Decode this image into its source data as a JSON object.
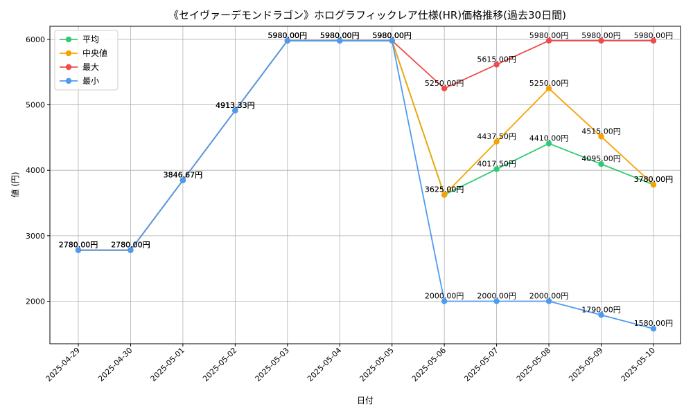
{
  "chart_data": {
    "type": "line",
    "title": "《セイヴァーデモンドラゴン》ホログラフィックレア仕様(HR)価格推移(過去30日間)",
    "xlabel": "日付",
    "ylabel": "値 (円)",
    "categories": [
      "2025-04-29",
      "2025-04-30",
      "2025-05-01",
      "2025-05-02",
      "2025-05-03",
      "2025-05-04",
      "2025-05-05",
      "2025-05-06",
      "2025-05-07",
      "2025-05-08",
      "2025-05-09",
      "2025-05-10"
    ],
    "ylim": [
      1350,
      6200
    ],
    "yticks": [
      2000,
      3000,
      4000,
      5000,
      6000
    ],
    "grid": true,
    "legend_position": "top-left",
    "series": [
      {
        "name": "平均",
        "color": "#2ecc71",
        "values": [
          2780,
          2780,
          3846.67,
          4913.33,
          5980,
          5980,
          5980,
          3625,
          4017.5,
          4410,
          4095,
          3780
        ],
        "labels": [
          "2780.00円",
          "2780.00円",
          "3846.67円",
          "4913.33円",
          "5980.00円",
          "5980.00円",
          "5980.00円",
          "3625.00円",
          "4017.50円",
          "4410.00円",
          "4095.00円",
          "3780.00円"
        ]
      },
      {
        "name": "中央値",
        "color": "#f5a300",
        "values": [
          2780,
          2780,
          3846.67,
          4913.33,
          5980,
          5980,
          5980,
          3625,
          4437.5,
          5250,
          4515,
          3780
        ],
        "labels": [
          "2780.00円",
          "2780.00円",
          "3846.67円",
          "4913.33円",
          "5980.00円",
          "5980.00円",
          "5980.00円",
          "3625.00円",
          "4437.50円",
          "5250.00円",
          "4515.00円",
          "3780.00円"
        ]
      },
      {
        "name": "最大",
        "color": "#ef4b4b",
        "values": [
          2780,
          2780,
          3846.67,
          4913.33,
          5980,
          5980,
          5980,
          5250,
          5615,
          5980,
          5980,
          5980
        ],
        "labels": [
          "2780.00円",
          "2780.00円",
          "3846.67円",
          "4913.33円",
          "5980.00円",
          "5980.00円",
          "5980.00円",
          "5250.00円",
          "5615.00円",
          "5980.00円",
          "5980.00円",
          "5980.00円"
        ]
      },
      {
        "name": "最小",
        "color": "#4d9bf0",
        "values": [
          2780,
          2780,
          3846.67,
          4913.33,
          5980,
          5980,
          5980,
          2000,
          2000,
          2000,
          1790,
          1580
        ],
        "labels": [
          "2780.00円",
          "2780.00円",
          "3846.67円",
          "4913.33円",
          "5980.00円",
          "5980.00円",
          "5980.00円",
          "2000.00円",
          "2000.00円",
          "2000.00円",
          "1790.00円",
          "1580.00円"
        ]
      }
    ]
  }
}
